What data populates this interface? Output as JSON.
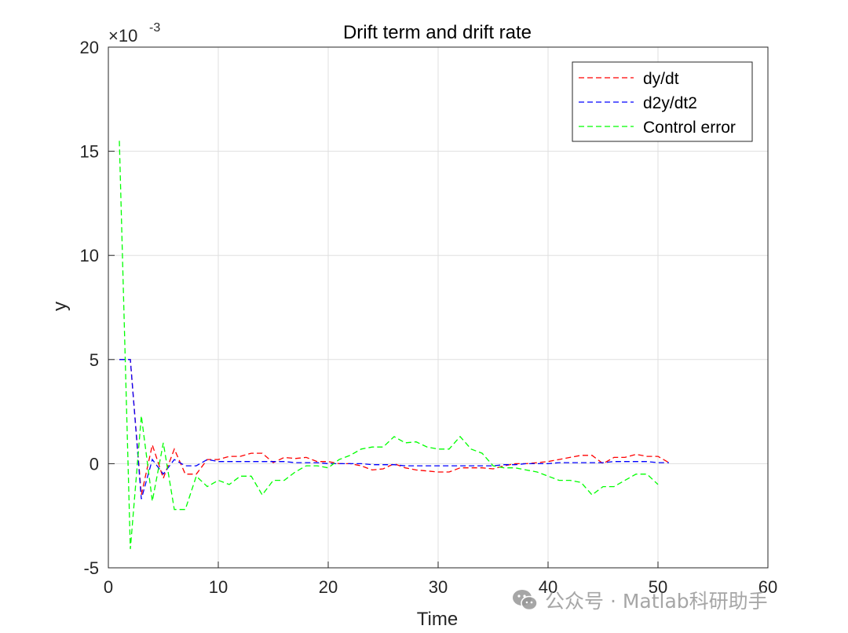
{
  "chart_data": {
    "type": "line",
    "title": "Drift term and drift rate",
    "xlabel": "Time",
    "ylabel": "y",
    "y_exponent_label": "×10",
    "y_exponent_value": "-3",
    "xlim": [
      0,
      60
    ],
    "ylim": [
      -5,
      20
    ],
    "xticks": [
      "0",
      "10",
      "20",
      "30",
      "40",
      "50",
      "60"
    ],
    "yticks": [
      "-5",
      "0",
      "5",
      "10",
      "15",
      "20"
    ],
    "xtick_values": [
      0,
      10,
      20,
      30,
      40,
      50,
      60
    ],
    "ytick_values": [
      -5,
      0,
      5,
      10,
      15,
      20
    ],
    "grid": true,
    "legend_position": "top-right",
    "series": [
      {
        "name": "dy/dt",
        "color": "#ff0000",
        "style": "dashed",
        "x": [
          1,
          2,
          3,
          4,
          5,
          6,
          7,
          8,
          9,
          10,
          11,
          12,
          13,
          14,
          15,
          16,
          17,
          18,
          19,
          20,
          21,
          22,
          23,
          24,
          25,
          26,
          27,
          28,
          29,
          30,
          31,
          32,
          33,
          34,
          35,
          36,
          37,
          38,
          39,
          40,
          41,
          42,
          43,
          44,
          45,
          46,
          47,
          48,
          49,
          50,
          51
        ],
        "values": [
          5,
          5,
          -1.5,
          0.9,
          -0.7,
          0.7,
          -0.5,
          -0.5,
          0.2,
          0.2,
          0.35,
          0.35,
          0.5,
          0.5,
          0.05,
          0.3,
          0.25,
          0.3,
          0.1,
          0.1,
          0.0,
          0.0,
          -0.1,
          -0.3,
          -0.25,
          0.0,
          -0.2,
          -0.3,
          -0.35,
          -0.4,
          -0.4,
          -0.2,
          -0.2,
          -0.2,
          -0.25,
          -0.1,
          0.0,
          0.0,
          0.05,
          0.1,
          0.2,
          0.3,
          0.4,
          0.4,
          0.0,
          0.3,
          0.3,
          0.45,
          0.35,
          0.35,
          0.05
        ]
      },
      {
        "name": "d2y/dt2",
        "color": "#0000ff",
        "style": "dashed",
        "x": [
          1,
          2,
          3,
          4,
          5,
          6,
          7,
          8,
          9,
          10,
          11,
          12,
          13,
          14,
          15,
          16,
          17,
          18,
          19,
          20,
          21,
          22,
          23,
          24,
          25,
          26,
          27,
          28,
          29,
          30,
          31,
          32,
          33,
          34,
          35,
          36,
          37,
          38,
          39,
          40,
          41,
          42,
          43,
          44,
          45,
          46,
          47,
          48,
          49,
          50,
          51
        ],
        "values": [
          5,
          5,
          -1.7,
          0.2,
          -0.5,
          0.2,
          -0.1,
          -0.1,
          0.2,
          0.1,
          0.1,
          0.1,
          0.1,
          0.1,
          0.1,
          0.1,
          0.05,
          0.05,
          0.05,
          0.0,
          0.0,
          0.0,
          0.0,
          -0.05,
          -0.05,
          -0.05,
          -0.1,
          -0.1,
          -0.1,
          -0.1,
          -0.1,
          -0.1,
          -0.1,
          -0.1,
          -0.1,
          -0.05,
          -0.05,
          0.0,
          0.0,
          0.0,
          0.05,
          0.05,
          0.05,
          0.05,
          0.05,
          0.1,
          0.1,
          0.1,
          0.1,
          0.05,
          0.05
        ]
      },
      {
        "name": "Control error",
        "color": "#00ff00",
        "style": "dashed",
        "x": [
          1,
          2,
          3,
          4,
          5,
          6,
          7,
          8,
          9,
          10,
          11,
          12,
          13,
          14,
          15,
          16,
          17,
          18,
          19,
          20,
          21,
          22,
          23,
          24,
          25,
          26,
          27,
          28,
          29,
          30,
          31,
          32,
          33,
          34,
          35,
          36,
          37,
          38,
          39,
          40,
          41,
          42,
          43,
          44,
          45,
          46,
          47,
          48,
          49,
          50
        ],
        "values": [
          15.5,
          -4.1,
          2.3,
          -1.8,
          1.0,
          -2.2,
          -2.2,
          -0.6,
          -1.1,
          -0.8,
          -1.0,
          -0.6,
          -0.6,
          -1.5,
          -0.8,
          -0.8,
          -0.4,
          -0.1,
          -0.1,
          -0.2,
          0.2,
          0.4,
          0.7,
          0.8,
          0.8,
          1.3,
          1.0,
          1.05,
          0.8,
          0.7,
          0.7,
          1.3,
          0.7,
          0.5,
          -0.1,
          -0.2,
          -0.2,
          -0.3,
          -0.4,
          -0.6,
          -0.8,
          -0.8,
          -0.9,
          -1.5,
          -1.1,
          -1.1,
          -0.8,
          -0.5,
          -0.5,
          -1.0
        ]
      }
    ]
  },
  "watermark": {
    "icon": "wechat-icon",
    "text": "公众号 · Matlab科研助手"
  }
}
